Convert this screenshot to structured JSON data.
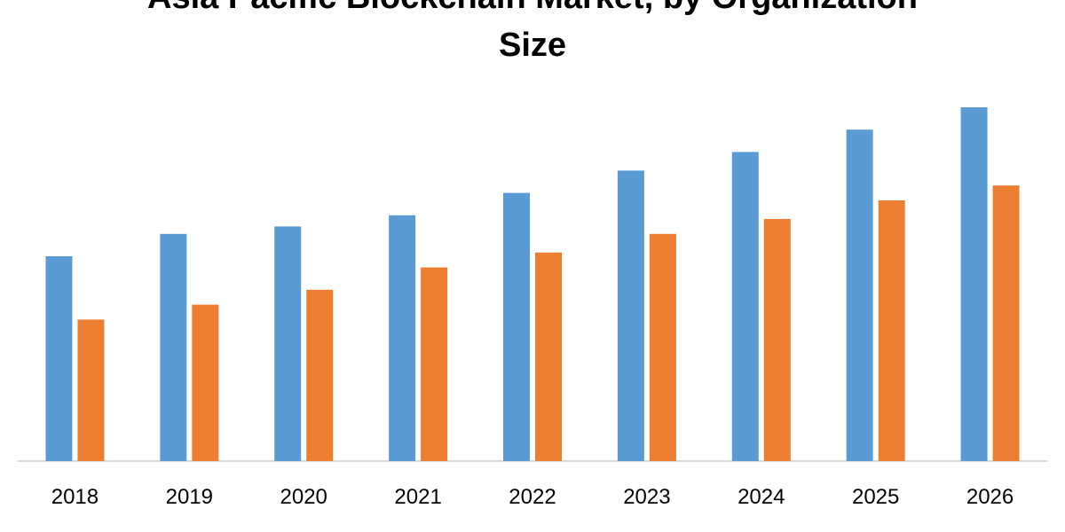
{
  "chart_data": {
    "type": "bar",
    "title": "Asia Pacific Blockchain Market, by Organization Size",
    "title_lines": [
      "Asia Pacific Blockchain Market, by Organization",
      "Size"
    ],
    "xlabel": "",
    "ylabel": "",
    "categories": [
      "2018",
      "2019",
      "2020",
      "2021",
      "2022",
      "2023",
      "2024",
      "2025",
      "2026"
    ],
    "series": [
      {
        "color": "#5B9BD5",
        "values": [
          55,
          61,
          63,
          66,
          72,
          78,
          83,
          89,
          95
        ]
      },
      {
        "color": "#ED7D31",
        "values": [
          38,
          42,
          46,
          52,
          56,
          61,
          65,
          70,
          74
        ]
      }
    ],
    "ylim": [
      0,
      100
    ],
    "grid": false,
    "legend": "none"
  }
}
